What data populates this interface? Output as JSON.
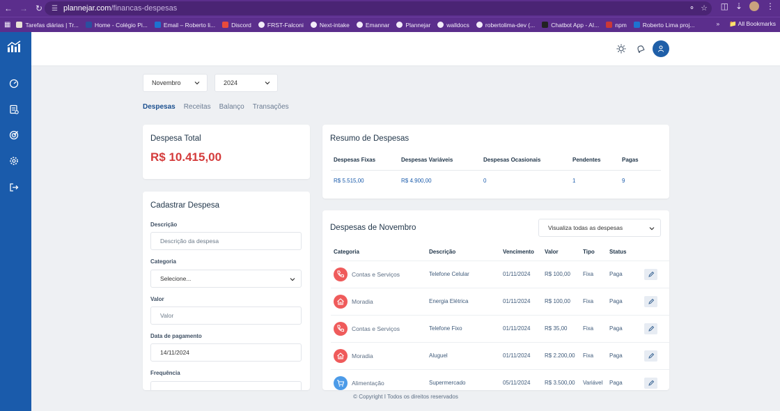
{
  "browser": {
    "url_host": "plannejar.com",
    "url_path": "/financas-despesas",
    "bookmarks": [
      {
        "label": "Tarefas diárias | Tr...",
        "color": "#e8e2d5"
      },
      {
        "label": "Home - Colégio Pi...",
        "color": "#2b4fa0"
      },
      {
        "label": "Email – Roberto li...",
        "color": "#1d73d1"
      },
      {
        "label": "Discord",
        "color": "#e84b3c"
      },
      {
        "label": "FRST-Falconi",
        "color": "#f2ecf9"
      },
      {
        "label": "Next-intake",
        "color": "#f2ecf9"
      },
      {
        "label": "Emannar",
        "color": "#f2ecf9"
      },
      {
        "label": "Plannejar",
        "color": "#f2ecf9"
      },
      {
        "label": "walldocs",
        "color": "#f2ecf9"
      },
      {
        "label": "robertolima-dev (...",
        "color": "#f2ecf9"
      },
      {
        "label": "Chatbot App - AI...",
        "color": "#222222"
      },
      {
        "label": "npm",
        "color": "#cb3837"
      },
      {
        "label": "Roberto Lima proj...",
        "color": "#1d73d1"
      }
    ],
    "all_bookmarks": "All Bookmarks",
    "overflow": "»"
  },
  "filters": {
    "month": "Novembro",
    "year": "2024"
  },
  "tabs": [
    "Despesas",
    "Receitas",
    "Balanço",
    "Transações"
  ],
  "total": {
    "title": "Despesa Total",
    "value": "R$ 10.415,00"
  },
  "summary": {
    "title": "Resumo de Despesas",
    "headers": [
      "Despesas Fixas",
      "Despesas Variáveis",
      "Despesas Ocasionais",
      "Pendentes",
      "Pagas"
    ],
    "values": [
      "R$ 5.515,00",
      "R$ 4.900,00",
      "0",
      "1",
      "9"
    ]
  },
  "form": {
    "title": "Cadastrar Despesa",
    "description_label": "Descrição",
    "description_placeholder": "Descrição da despesa",
    "category_label": "Categoria",
    "category_value": "Selecione...",
    "amount_label": "Valor",
    "amount_placeholder": "Valor",
    "date_label": "Data de pagamento",
    "date_value": "14/11/2024",
    "frequency_label": "Frequência"
  },
  "expenses": {
    "title": "Despesas de Novembro",
    "view_filter": "Visualiza todas as despesas",
    "headers": [
      "Categoria",
      "Descrição",
      "Vencimento",
      "Valor",
      "Tipo",
      "Status"
    ],
    "rows": [
      {
        "category": "Contas e Serviços",
        "icon": "phone-icon",
        "icon_color": "#ef5b5b",
        "description": "Telefone Celular",
        "due": "01/11/2024",
        "value": "R$ 100,00",
        "type": "Fixa",
        "status": "Paga"
      },
      {
        "category": "Moradia",
        "icon": "home-icon",
        "icon_color": "#ef5b5b",
        "description": "Energia Elétrica",
        "due": "01/11/2024",
        "value": "R$ 100,00",
        "type": "Fixa",
        "status": "Paga"
      },
      {
        "category": "Contas e Serviços",
        "icon": "phone-icon",
        "icon_color": "#ef5b5b",
        "description": "Telefone Fixo",
        "due": "01/11/2024",
        "value": "R$ 35,00",
        "type": "Fixa",
        "status": "Paga"
      },
      {
        "category": "Moradia",
        "icon": "home-icon",
        "icon_color": "#ef5b5b",
        "description": "Aluguel",
        "due": "01/11/2024",
        "value": "R$ 2.200,00",
        "type": "Fixa",
        "status": "Paga"
      },
      {
        "category": "Alimentação",
        "icon": "cart-icon",
        "icon_color": "#4c9be8",
        "description": "Supermercado",
        "due": "05/11/2024",
        "value": "R$ 3.500,00",
        "type": "Variável",
        "status": "Paga"
      }
    ]
  },
  "footer": "© Copyright I Todos os direitos reservados"
}
